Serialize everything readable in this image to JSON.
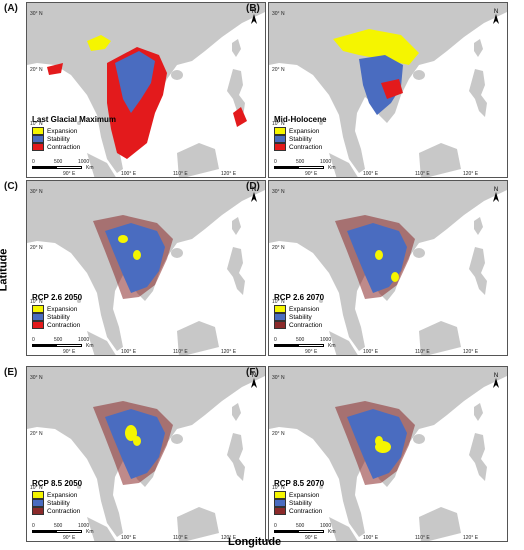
{
  "colors": {
    "land": "#c8c8c8",
    "expansion": "#f5f500",
    "stability": "#4a6cc0",
    "contraction_a": "#e31a1c",
    "contraction_b": "#8b2a2a"
  },
  "lat_ticks": [
    "30° N",
    "20° N",
    "10° N"
  ],
  "lon_ticks": [
    "90° E",
    "100° E",
    "110° E",
    "120° E"
  ],
  "scale": {
    "labels": [
      "0",
      "500",
      "1000"
    ],
    "unit": "Km"
  },
  "north": "N",
  "legend": [
    "Expansion",
    "Stability",
    "Contraction"
  ],
  "axis": {
    "x": "Longitude",
    "y": "Latitude"
  },
  "panels": [
    {
      "id": "A",
      "label": "(A)",
      "scenario": "Last Glacial Maximum"
    },
    {
      "id": "B",
      "label": "(B)",
      "scenario": "Mid-Holocene"
    },
    {
      "id": "C",
      "label": "(C)",
      "scenario": "RCP 2.6 2050"
    },
    {
      "id": "D",
      "label": "(D)",
      "scenario": "RCP 2.6 2070"
    },
    {
      "id": "E",
      "label": "(E)",
      "scenario": "RCP 8.5 2050"
    },
    {
      "id": "F",
      "label": "(F)",
      "scenario": "RCP 8.5 2070"
    }
  ]
}
